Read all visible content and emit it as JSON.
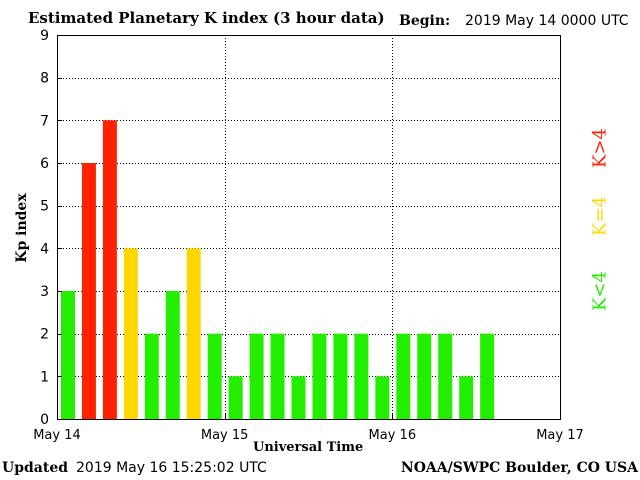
{
  "header": {
    "title": "Estimated Planetary K index (3 hour data)",
    "begin_label": "Begin:",
    "begin_value": "2019 May 14 0000 UTC"
  },
  "footer": {
    "updated_label": "Updated",
    "updated_value": "2019 May 16 15:25:02 UTC",
    "credit": "NOAA/SWPC Boulder, CO USA"
  },
  "legend": {
    "high": "K>4",
    "mid": "K=4",
    "low": "K<4"
  },
  "colors": {
    "high": "#ff2200",
    "mid": "#ffd700",
    "low": "#22ee00"
  },
  "chart_data": {
    "type": "bar",
    "xlabel": "Universal Time",
    "ylabel": "Kp index",
    "ylim": [
      0,
      9
    ],
    "yticks": [
      "0",
      "1",
      "2",
      "3",
      "4",
      "5",
      "6",
      "7",
      "8",
      "9"
    ],
    "xticks": [
      "May 14",
      "May 15",
      "May 16",
      "May 17"
    ],
    "grid": true,
    "interval_hours": 3,
    "values": [
      3,
      6,
      7,
      4,
      2,
      3,
      4,
      2,
      1,
      2,
      2,
      1,
      2,
      2,
      2,
      1,
      2,
      2,
      2,
      1,
      2
    ]
  }
}
